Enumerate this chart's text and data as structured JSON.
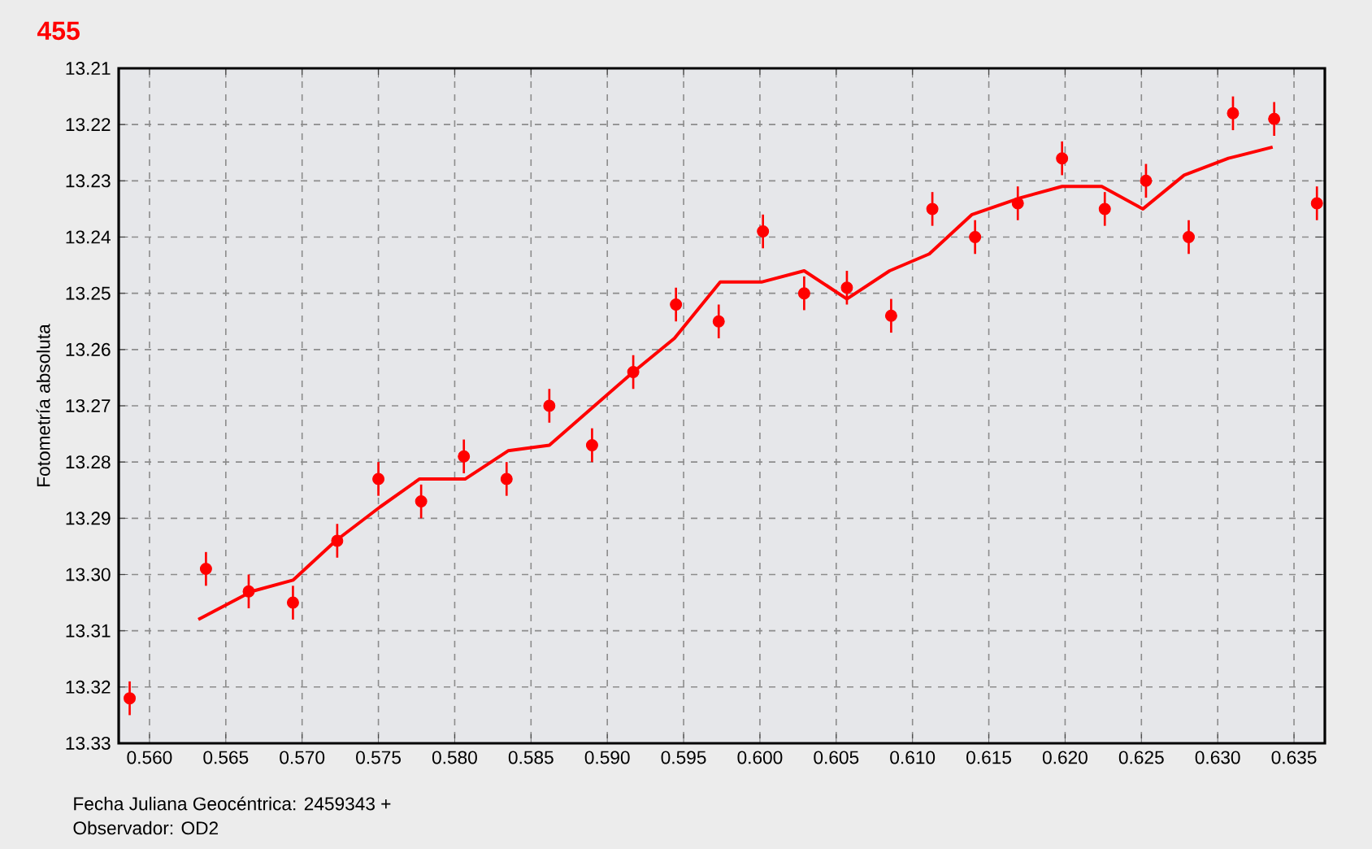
{
  "chart_data": {
    "type": "scatter",
    "title": "455",
    "ylabel": "Fotometría absoluta",
    "annotations": [
      "Fecha Juliana Geocéntrica: 2459343 +",
      "Observador: OD2"
    ],
    "xlim": [
      0.55798,
      0.63702
    ],
    "ylim": [
      13.33,
      13.21
    ],
    "xticks": [
      {
        "value": 0.56,
        "label": "0.560"
      },
      {
        "value": 0.565,
        "label": "0.565"
      },
      {
        "value": 0.57,
        "label": "0.570"
      },
      {
        "value": 0.575,
        "label": "0.575"
      },
      {
        "value": 0.58,
        "label": "0.580"
      },
      {
        "value": 0.585,
        "label": "0.585"
      },
      {
        "value": 0.59,
        "label": "0.590"
      },
      {
        "value": 0.595,
        "label": "0.595"
      },
      {
        "value": 0.6,
        "label": "0.600"
      },
      {
        "value": 0.605,
        "label": "0.605"
      },
      {
        "value": 0.61,
        "label": "0.610"
      },
      {
        "value": 0.615,
        "label": "0.615"
      },
      {
        "value": 0.62,
        "label": "0.620"
      },
      {
        "value": 0.625,
        "label": "0.625"
      },
      {
        "value": 0.63,
        "label": "0.630"
      },
      {
        "value": 0.635,
        "label": "0.635"
      }
    ],
    "yticks": [
      13.21,
      13.22,
      13.23,
      13.24,
      13.25,
      13.26,
      13.27,
      13.28,
      13.29,
      {
        "value": 13.3,
        "label": "13.30"
      },
      13.31,
      13.32,
      13.33
    ],
    "grid": true,
    "series": [
      {
        "color": "#ff0000",
        "marker": "circle",
        "x": [
          0.5587,
          0.5637,
          0.5665,
          0.5694,
          0.5723,
          0.575,
          0.5778,
          0.5806,
          0.5834,
          0.5862,
          0.589,
          0.5917,
          0.5945,
          0.5973,
          0.6002,
          0.6029,
          0.6057,
          0.6086,
          0.6113,
          0.6141,
          0.6169,
          0.6198,
          0.6226,
          0.6253,
          0.6281,
          0.631,
          0.6337,
          0.6365
        ],
        "values": [
          13.322,
          13.299,
          13.303,
          13.305,
          13.294,
          13.283,
          13.287,
          13.279,
          13.283,
          13.27,
          13.277,
          13.264,
          13.252,
          13.255,
          13.239,
          13.25,
          13.249,
          13.254,
          13.235,
          13.24,
          13.234,
          13.226,
          13.235,
          13.23,
          13.24,
          13.218,
          13.219,
          13.234
        ],
        "errors": [
          0.003,
          0.003,
          0.003,
          0.003,
          0.003,
          0.003,
          0.003,
          0.003,
          0.003,
          0.003,
          0.003,
          0.003,
          0.003,
          0.003,
          0.003,
          0.003,
          0.003,
          0.003,
          0.003,
          0.003,
          0.003,
          0.003,
          0.003,
          0.003,
          0.003,
          0.003,
          0.003,
          0.003
        ]
      },
      {
        "type": "line",
        "color": "#ff0000",
        "marker": "none",
        "line_style": "solid",
        "x": [
          0.5632,
          0.5667,
          0.5694,
          0.5722,
          0.5751,
          0.5777,
          0.5807,
          0.5835,
          0.5862,
          0.5917,
          0.5944,
          0.5974,
          0.6001,
          0.6029,
          0.6057,
          0.6085,
          0.6111,
          0.6139,
          0.6171,
          0.6198,
          0.6224,
          0.6251,
          0.6278,
          0.6307,
          0.6336
        ],
        "values": [
          13.308,
          13.303,
          13.301,
          13.294,
          13.288,
          13.283,
          13.283,
          13.278,
          13.277,
          13.264,
          13.258,
          13.248,
          13.248,
          13.246,
          13.251,
          13.246,
          13.243,
          13.236,
          13.233,
          13.231,
          13.231,
          13.235,
          13.229,
          13.226,
          13.224
        ]
      }
    ]
  }
}
